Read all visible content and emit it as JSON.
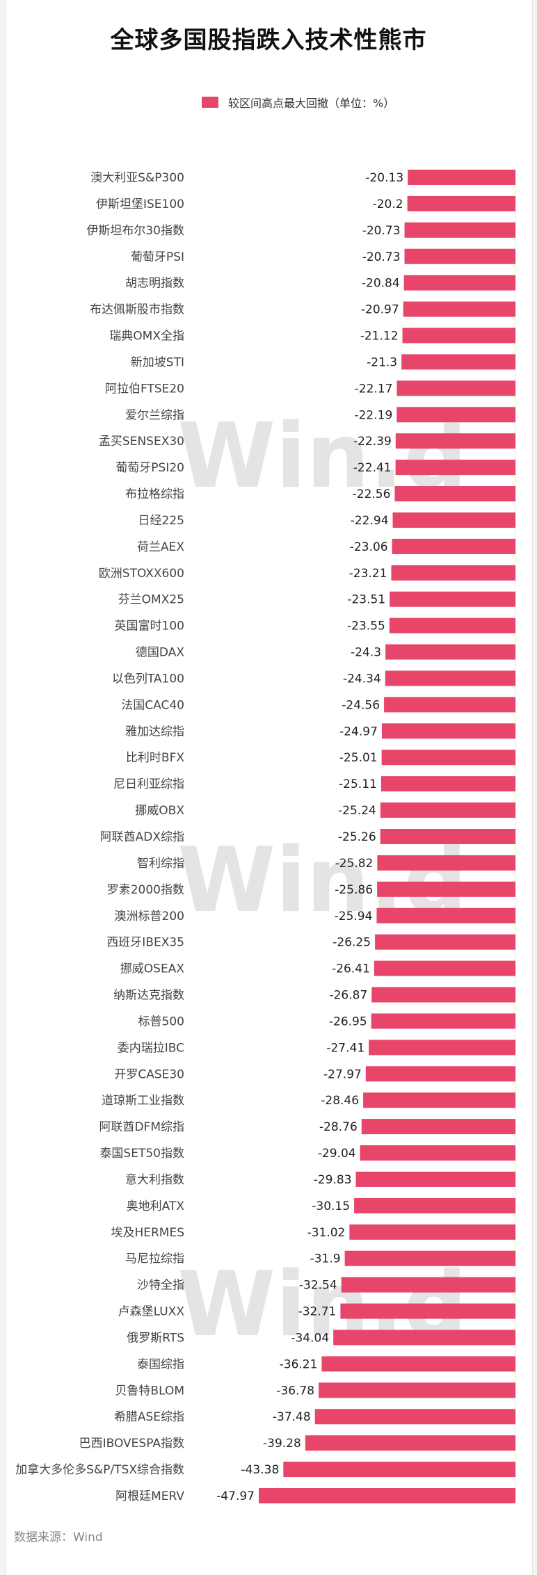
{
  "title": "全球多国股指跌入技术性熊市",
  "footer": "数据来源：Wind",
  "watermark": "Win.d",
  "colors": {
    "bar": "#e8456a"
  },
  "chart_data": {
    "type": "bar",
    "orientation": "horizontal",
    "title": "全球多国股指跌入技术性熊市",
    "legend": {
      "label": "较区间高点最大回撤（单位：%）",
      "position": "top"
    },
    "grid": false,
    "xlim": [
      -50,
      0
    ],
    "categories": [
      "澳大利亚S&P300",
      "伊斯坦堡ISE100",
      "伊斯坦布尔30指数",
      "葡萄牙PSI",
      "胡志明指数",
      "布达佩斯股市指数",
      "瑞典OMX全指",
      "新加坡STI",
      "阿拉伯FTSE20",
      "爱尔兰综指",
      "孟买SENSEX30",
      "葡萄牙PSI20",
      "布拉格综指",
      "日经225",
      "荷兰AEX",
      "欧洲STOXX600",
      "芬兰OMX25",
      "英国富时100",
      "德国DAX",
      "以色列TA100",
      "法国CAC40",
      "雅加达综指",
      "比利时BFX",
      "尼日利亚综指",
      "挪威OBX",
      "阿联酋ADX综指",
      "智利综指",
      "罗素2000指数",
      "澳洲标普200",
      "西班牙IBEX35",
      "挪威OSEAX",
      "纳斯达克指数",
      "标普500",
      "委内瑞拉IBC",
      "开罗CASE30",
      "道琼斯工业指数",
      "阿联酋DFM综指",
      "泰国SET50指数",
      "意大利指数",
      "奥地利ATX",
      "埃及HERMES",
      "马尼拉综指",
      "沙特全指",
      "卢森堡LUXX",
      "俄罗斯RTS",
      "泰国综指",
      "贝鲁特BLOM",
      "希腊ASE综指",
      "巴西IBOVESPA指数",
      "加拿大多伦多S&P/TSX综合指数",
      "阿根廷MERV"
    ],
    "values": [
      -20.13,
      -20.2,
      -20.73,
      -20.73,
      -20.84,
      -20.97,
      -21.12,
      -21.3,
      -22.17,
      -22.19,
      -22.39,
      -22.41,
      -22.56,
      -22.94,
      -23.06,
      -23.21,
      -23.51,
      -23.55,
      -24.3,
      -24.34,
      -24.56,
      -24.97,
      -25.01,
      -25.11,
      -25.24,
      -25.26,
      -25.82,
      -25.86,
      -25.94,
      -26.25,
      -26.41,
      -26.87,
      -26.95,
      -27.41,
      -27.97,
      -28.46,
      -28.76,
      -29.04,
      -29.83,
      -30.15,
      -31.02,
      -31.9,
      -32.54,
      -32.71,
      -34.04,
      -36.21,
      -36.78,
      -37.48,
      -39.28,
      -43.38,
      -47.97
    ],
    "data_labels": [
      "-20.13",
      "-20.2",
      "-20.73",
      "-20.73",
      "-20.84",
      "-20.97",
      "-21.12",
      "-21.3",
      "-22.17",
      "-22.19",
      "-22.39",
      "-22.41",
      "-22.56",
      "-22.94",
      "-23.06",
      "-23.21",
      "-23.51",
      "-23.55",
      "-24.3",
      "-24.34",
      "-24.56",
      "-24.97",
      "-25.01",
      "-25.11",
      "-25.24",
      "-25.26",
      "-25.82",
      "-25.86",
      "-25.94",
      "-26.25",
      "-26.41",
      "-26.87",
      "-26.95",
      "-27.41",
      "-27.97",
      "-28.46",
      "-28.76",
      "-29.04",
      "-29.83",
      "-30.15",
      "-31.02",
      "-31.9",
      "-32.54",
      "-32.71",
      "-34.04",
      "-36.21",
      "-36.78",
      "-37.48",
      "-39.28",
      "-43.38",
      "-47.97"
    ]
  }
}
